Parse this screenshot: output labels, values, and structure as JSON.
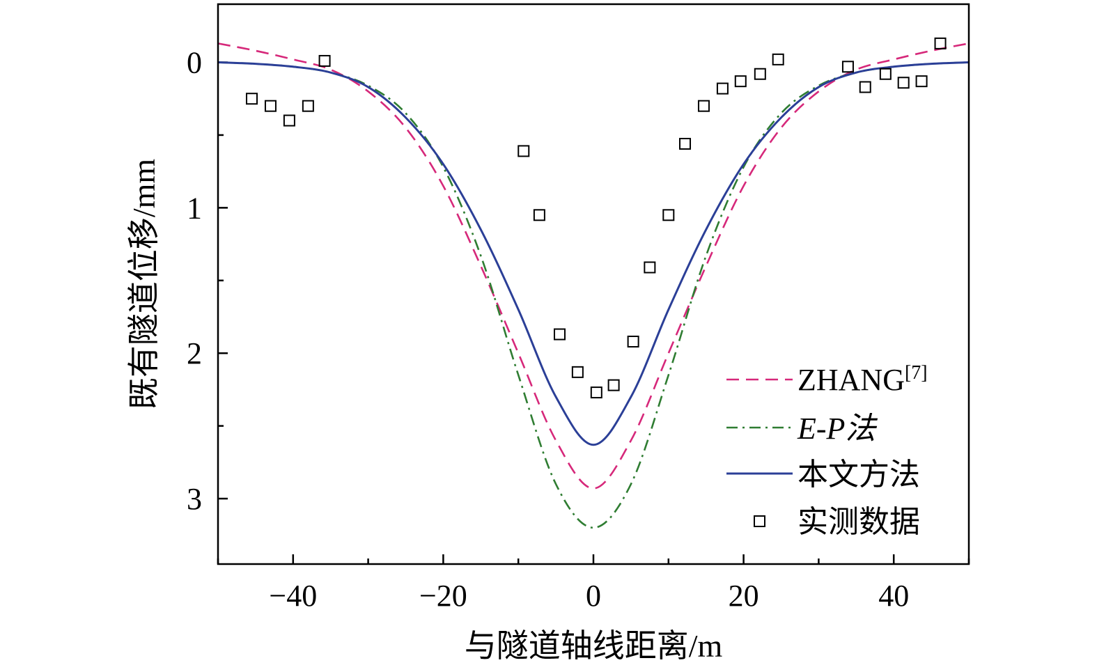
{
  "chart_data": {
    "type": "line",
    "title": "",
    "xlabel": "与隧道轴线距离/m",
    "ylabel": "既有隧道位移/mm",
    "xlim": [
      -50,
      50
    ],
    "ylim": [
      3.45,
      -0.4
    ],
    "y_inverted": true,
    "x_ticks": [
      -40,
      -20,
      0,
      20,
      40
    ],
    "x_tick_labels": [
      "−40",
      "−20",
      "0",
      "20",
      "40"
    ],
    "y_ticks": [
      0,
      1,
      2,
      3
    ],
    "y_tick_labels": [
      "0",
      "1",
      "2",
      "3"
    ],
    "x_minor_ticks": [
      -50,
      -30,
      -10,
      10,
      30,
      50
    ],
    "y_minor_ticks": [
      0.5,
      1.5,
      2.5
    ],
    "legend_position": "lower-right",
    "series": [
      {
        "name": "ZHANG",
        "name_sup": "[7]",
        "style": "dashed",
        "color": "#d6287a",
        "x": [
          -50,
          -45,
          -40,
          -35,
          -30,
          -25,
          -20,
          -15,
          -10,
          -5,
          0,
          5,
          10,
          15,
          20,
          25,
          30,
          35,
          40,
          45,
          50
        ],
        "y": [
          -0.13,
          -0.08,
          -0.02,
          0.05,
          0.2,
          0.45,
          0.85,
          1.4,
          2.0,
          2.6,
          2.93,
          2.6,
          2.0,
          1.4,
          0.85,
          0.45,
          0.2,
          0.05,
          -0.02,
          -0.08,
          -0.13
        ]
      },
      {
        "name": "E-P法",
        "style": "dashdot",
        "color": "#2f7d32",
        "x": [
          -50,
          -45,
          -40,
          -35,
          -30,
          -25,
          -20,
          -15,
          -10,
          -5,
          0,
          5,
          10,
          15,
          20,
          25,
          30,
          35,
          40,
          45,
          50
        ],
        "y": [
          0.0,
          0.01,
          0.03,
          0.07,
          0.16,
          0.35,
          0.72,
          1.33,
          2.15,
          2.9,
          3.2,
          2.9,
          2.15,
          1.33,
          0.72,
          0.35,
          0.16,
          0.07,
          0.03,
          0.01,
          0.0
        ]
      },
      {
        "name": "本文方法",
        "style": "solid",
        "color": "#2b3f97",
        "x": [
          -50,
          -45,
          -40,
          -35,
          -30,
          -25,
          -20,
          -15,
          -10,
          -5,
          0,
          5,
          10,
          15,
          20,
          25,
          30,
          35,
          40,
          45,
          50
        ],
        "y": [
          0.0,
          0.01,
          0.03,
          0.07,
          0.17,
          0.38,
          0.7,
          1.15,
          1.7,
          2.3,
          2.63,
          2.3,
          1.7,
          1.15,
          0.7,
          0.38,
          0.17,
          0.07,
          0.03,
          0.01,
          0.0
        ]
      }
    ],
    "scatter": {
      "name": "实测数据",
      "marker": "open-square",
      "color": "#000000",
      "x": [
        -45.5,
        -43,
        -40.5,
        -38,
        -35.8,
        -9.3,
        -7.2,
        -4.5,
        -2.1,
        0.4,
        2.7,
        5.3,
        7.5,
        10.0,
        12.2,
        14.7,
        17.2,
        19.6,
        22.2,
        24.6,
        33.9,
        36.2,
        38.9,
        41.3,
        43.7,
        46.2
      ],
      "y": [
        0.25,
        0.3,
        0.4,
        0.3,
        -0.01,
        0.61,
        1.05,
        1.87,
        2.13,
        2.27,
        2.22,
        1.92,
        1.41,
        1.05,
        0.56,
        0.3,
        0.18,
        0.13,
        0.08,
        -0.02,
        0.03,
        0.17,
        0.08,
        0.14,
        0.13,
        -0.13
      ]
    }
  }
}
